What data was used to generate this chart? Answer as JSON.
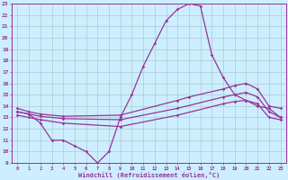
{
  "xlabel": "Windchill (Refroidissement éolien,°C)",
  "xlim": [
    -0.5,
    23.5
  ],
  "ylim": [
    9,
    23
  ],
  "yticks": [
    9,
    10,
    11,
    12,
    13,
    14,
    15,
    16,
    17,
    18,
    19,
    20,
    21,
    22,
    23
  ],
  "xticks": [
    0,
    1,
    2,
    3,
    4,
    5,
    6,
    7,
    8,
    9,
    10,
    11,
    12,
    13,
    14,
    15,
    16,
    17,
    18,
    19,
    20,
    21,
    22,
    23
  ],
  "bg_color": "#cceeff",
  "grid_color": "#aacccc",
  "line_color": "#993399",
  "lines": [
    {
      "x": [
        0,
        1,
        2,
        3,
        4,
        5,
        6,
        7,
        8,
        9,
        10,
        11,
        12,
        13,
        14,
        15,
        16,
        17,
        18,
        19,
        20,
        21,
        22,
        23
      ],
      "y": [
        13.5,
        13.3,
        12.5,
        11.0,
        11.0,
        10.5,
        10.0,
        9.0,
        10.0,
        13.0,
        15.0,
        17.5,
        19.5,
        21.5,
        22.5,
        23.0,
        22.8,
        18.5,
        16.5,
        15.0,
        14.5,
        14.0,
        13.8,
        13.0
      ]
    },
    {
      "x": [
        0,
        1,
        2,
        4,
        9,
        14,
        15,
        18,
        19,
        20,
        21,
        22,
        23
      ],
      "y": [
        13.8,
        13.5,
        13.3,
        13.1,
        13.2,
        14.5,
        14.8,
        15.5,
        15.8,
        16.0,
        15.5,
        14.0,
        13.8
      ]
    },
    {
      "x": [
        0,
        1,
        2,
        4,
        9,
        14,
        18,
        19,
        20,
        21,
        22,
        23
      ],
      "y": [
        13.5,
        13.3,
        13.1,
        12.9,
        12.8,
        13.8,
        14.8,
        15.0,
        15.2,
        14.8,
        13.5,
        13.0
      ]
    },
    {
      "x": [
        0,
        1,
        2,
        4,
        9,
        14,
        18,
        19,
        20,
        21,
        22,
        23
      ],
      "y": [
        13.2,
        13.0,
        12.8,
        12.5,
        12.2,
        13.2,
        14.2,
        14.4,
        14.5,
        14.2,
        13.0,
        12.8
      ]
    }
  ]
}
